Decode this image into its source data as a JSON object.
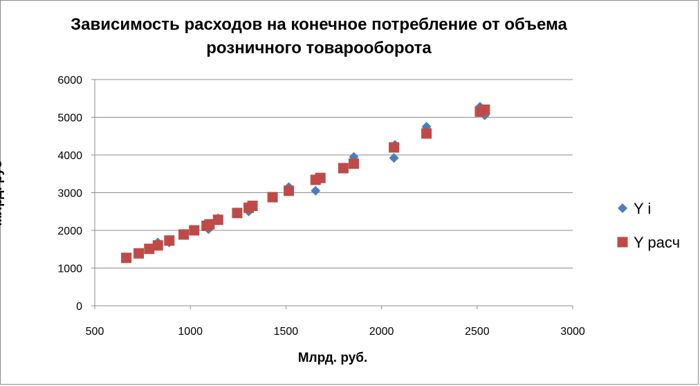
{
  "chart_data": {
    "type": "scatter",
    "title_lines": [
      "Зависимость расходов на конечное потребление от объема",
      "розничного товарооборота"
    ],
    "xlabel": "Млрд. руб.",
    "ylabel": "Млрд. руб",
    "xlim": [
      500,
      3000
    ],
    "ylim": [
      0,
      6000
    ],
    "x_ticks": [
      500,
      1000,
      1500,
      2000,
      2500,
      3000
    ],
    "y_ticks": [
      0,
      1000,
      2000,
      3000,
      4000,
      5000,
      6000
    ],
    "grid": "horizontal",
    "legend": "right",
    "series": [
      {
        "name": "Y i",
        "marker": "diamond",
        "color": "#4a7ebb",
        "points": [
          [
            665,
            1270
          ],
          [
            730,
            1390
          ],
          [
            785,
            1500
          ],
          [
            830,
            1680
          ],
          [
            890,
            1680
          ],
          [
            965,
            1900
          ],
          [
            1020,
            2000
          ],
          [
            1095,
            2030
          ],
          [
            1145,
            2320
          ],
          [
            1245,
            2480
          ],
          [
            1305,
            2500
          ],
          [
            1325,
            2650
          ],
          [
            1430,
            2880
          ],
          [
            1515,
            3150
          ],
          [
            1655,
            3050
          ],
          [
            1680,
            3400
          ],
          [
            1800,
            3650
          ],
          [
            1855,
            3950
          ],
          [
            2065,
            3920
          ],
          [
            2070,
            4270
          ],
          [
            2235,
            4750
          ],
          [
            2515,
            5280
          ],
          [
            2540,
            5050
          ]
        ]
      },
      {
        "name": "Y расч",
        "marker": "square",
        "color": "#be4b48",
        "points": [
          [
            665,
            1270
          ],
          [
            730,
            1390
          ],
          [
            785,
            1510
          ],
          [
            830,
            1600
          ],
          [
            890,
            1730
          ],
          [
            965,
            1890
          ],
          [
            1020,
            2000
          ],
          [
            1085,
            2120
          ],
          [
            1100,
            2160
          ],
          [
            1145,
            2280
          ],
          [
            1245,
            2460
          ],
          [
            1305,
            2600
          ],
          [
            1325,
            2650
          ],
          [
            1430,
            2880
          ],
          [
            1515,
            3050
          ],
          [
            1655,
            3340
          ],
          [
            1680,
            3390
          ],
          [
            1800,
            3650
          ],
          [
            1855,
            3770
          ],
          [
            2065,
            4200
          ],
          [
            2235,
            4570
          ],
          [
            2515,
            5150
          ],
          [
            2540,
            5200
          ]
        ]
      }
    ]
  }
}
